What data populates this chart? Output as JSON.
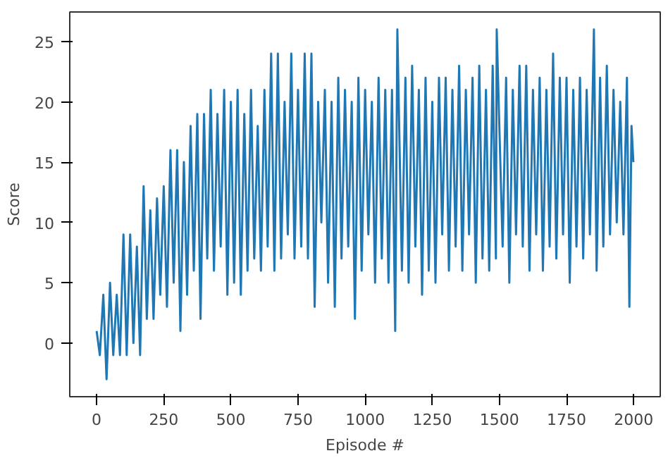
{
  "chart_data": {
    "type": "line",
    "xlabel": "Episode #",
    "ylabel": "Score",
    "xlim": [
      -100,
      2099
    ],
    "ylim": [
      -4.45,
      27.45
    ],
    "xticks": [
      0,
      250,
      500,
      750,
      1000,
      1250,
      1500,
      1750,
      2000
    ],
    "yticks": [
      0,
      5,
      10,
      15,
      20,
      25
    ],
    "grid": false,
    "marker": "none",
    "line_style": "solid",
    "series": [
      {
        "color": "#1f77b4",
        "x": [
          0,
          12,
          25,
          37,
          50,
          62,
          75,
          87,
          100,
          112,
          125,
          137,
          150,
          162,
          175,
          187,
          200,
          212,
          225,
          237,
          250,
          262,
          275,
          287,
          300,
          312,
          325,
          337,
          350,
          362,
          375,
          387,
          400,
          412,
          425,
          437,
          450,
          462,
          475,
          487,
          500,
          512,
          525,
          537,
          550,
          562,
          575,
          587,
          600,
          612,
          625,
          637,
          650,
          662,
          675,
          687,
          700,
          712,
          725,
          737,
          750,
          762,
          775,
          787,
          800,
          812,
          825,
          837,
          850,
          862,
          875,
          887,
          900,
          912,
          925,
          937,
          950,
          962,
          975,
          987,
          1000,
          1012,
          1025,
          1037,
          1050,
          1062,
          1075,
          1087,
          1100,
          1112,
          1120,
          1137,
          1150,
          1162,
          1175,
          1187,
          1200,
          1212,
          1225,
          1237,
          1250,
          1262,
          1275,
          1287,
          1300,
          1312,
          1325,
          1337,
          1350,
          1362,
          1375,
          1387,
          1400,
          1412,
          1425,
          1437,
          1450,
          1462,
          1475,
          1487,
          1490,
          1512,
          1525,
          1537,
          1550,
          1562,
          1575,
          1587,
          1600,
          1612,
          1625,
          1637,
          1650,
          1662,
          1675,
          1687,
          1700,
          1712,
          1725,
          1737,
          1750,
          1762,
          1775,
          1787,
          1800,
          1812,
          1825,
          1837,
          1852,
          1862,
          1875,
          1887,
          1900,
          1912,
          1925,
          1937,
          1950,
          1962,
          1975,
          1984,
          1992,
          1999
        ],
        "values": [
          1,
          -1,
          4,
          -3,
          5,
          -1,
          4,
          -1,
          9,
          -1,
          9,
          0,
          8,
          -1,
          13,
          2,
          11,
          2,
          12,
          4,
          13,
          3,
          16,
          5,
          16,
          1,
          15,
          4,
          18,
          6,
          19,
          2,
          19,
          7,
          21,
          6,
          19,
          8,
          21,
          4,
          20,
          5,
          21,
          4,
          19,
          6,
          21,
          7,
          18,
          6,
          21,
          8,
          24,
          6,
          24,
          7,
          20,
          9,
          24,
          7,
          21,
          8,
          24,
          7,
          24,
          3,
          20,
          10,
          21,
          5,
          20,
          3,
          22,
          7,
          21,
          8,
          20,
          2,
          22,
          6,
          21,
          9,
          20,
          5,
          22,
          7,
          21,
          5,
          21,
          1,
          26,
          6,
          22,
          5,
          23,
          8,
          21,
          4,
          22,
          6,
          20,
          5,
          22,
          9,
          22,
          6,
          21,
          8,
          23,
          6,
          21,
          9,
          22,
          5,
          23,
          7,
          21,
          6,
          23,
          7,
          26,
          8,
          22,
          5,
          21,
          9,
          23,
          8,
          23,
          6,
          21,
          9,
          22,
          6,
          21,
          8,
          24,
          7,
          22,
          9,
          22,
          5,
          21,
          8,
          22,
          7,
          21,
          9,
          26,
          6,
          22,
          8,
          23,
          9,
          21,
          10,
          20,
          9,
          22,
          3,
          18,
          15
        ]
      }
    ]
  }
}
